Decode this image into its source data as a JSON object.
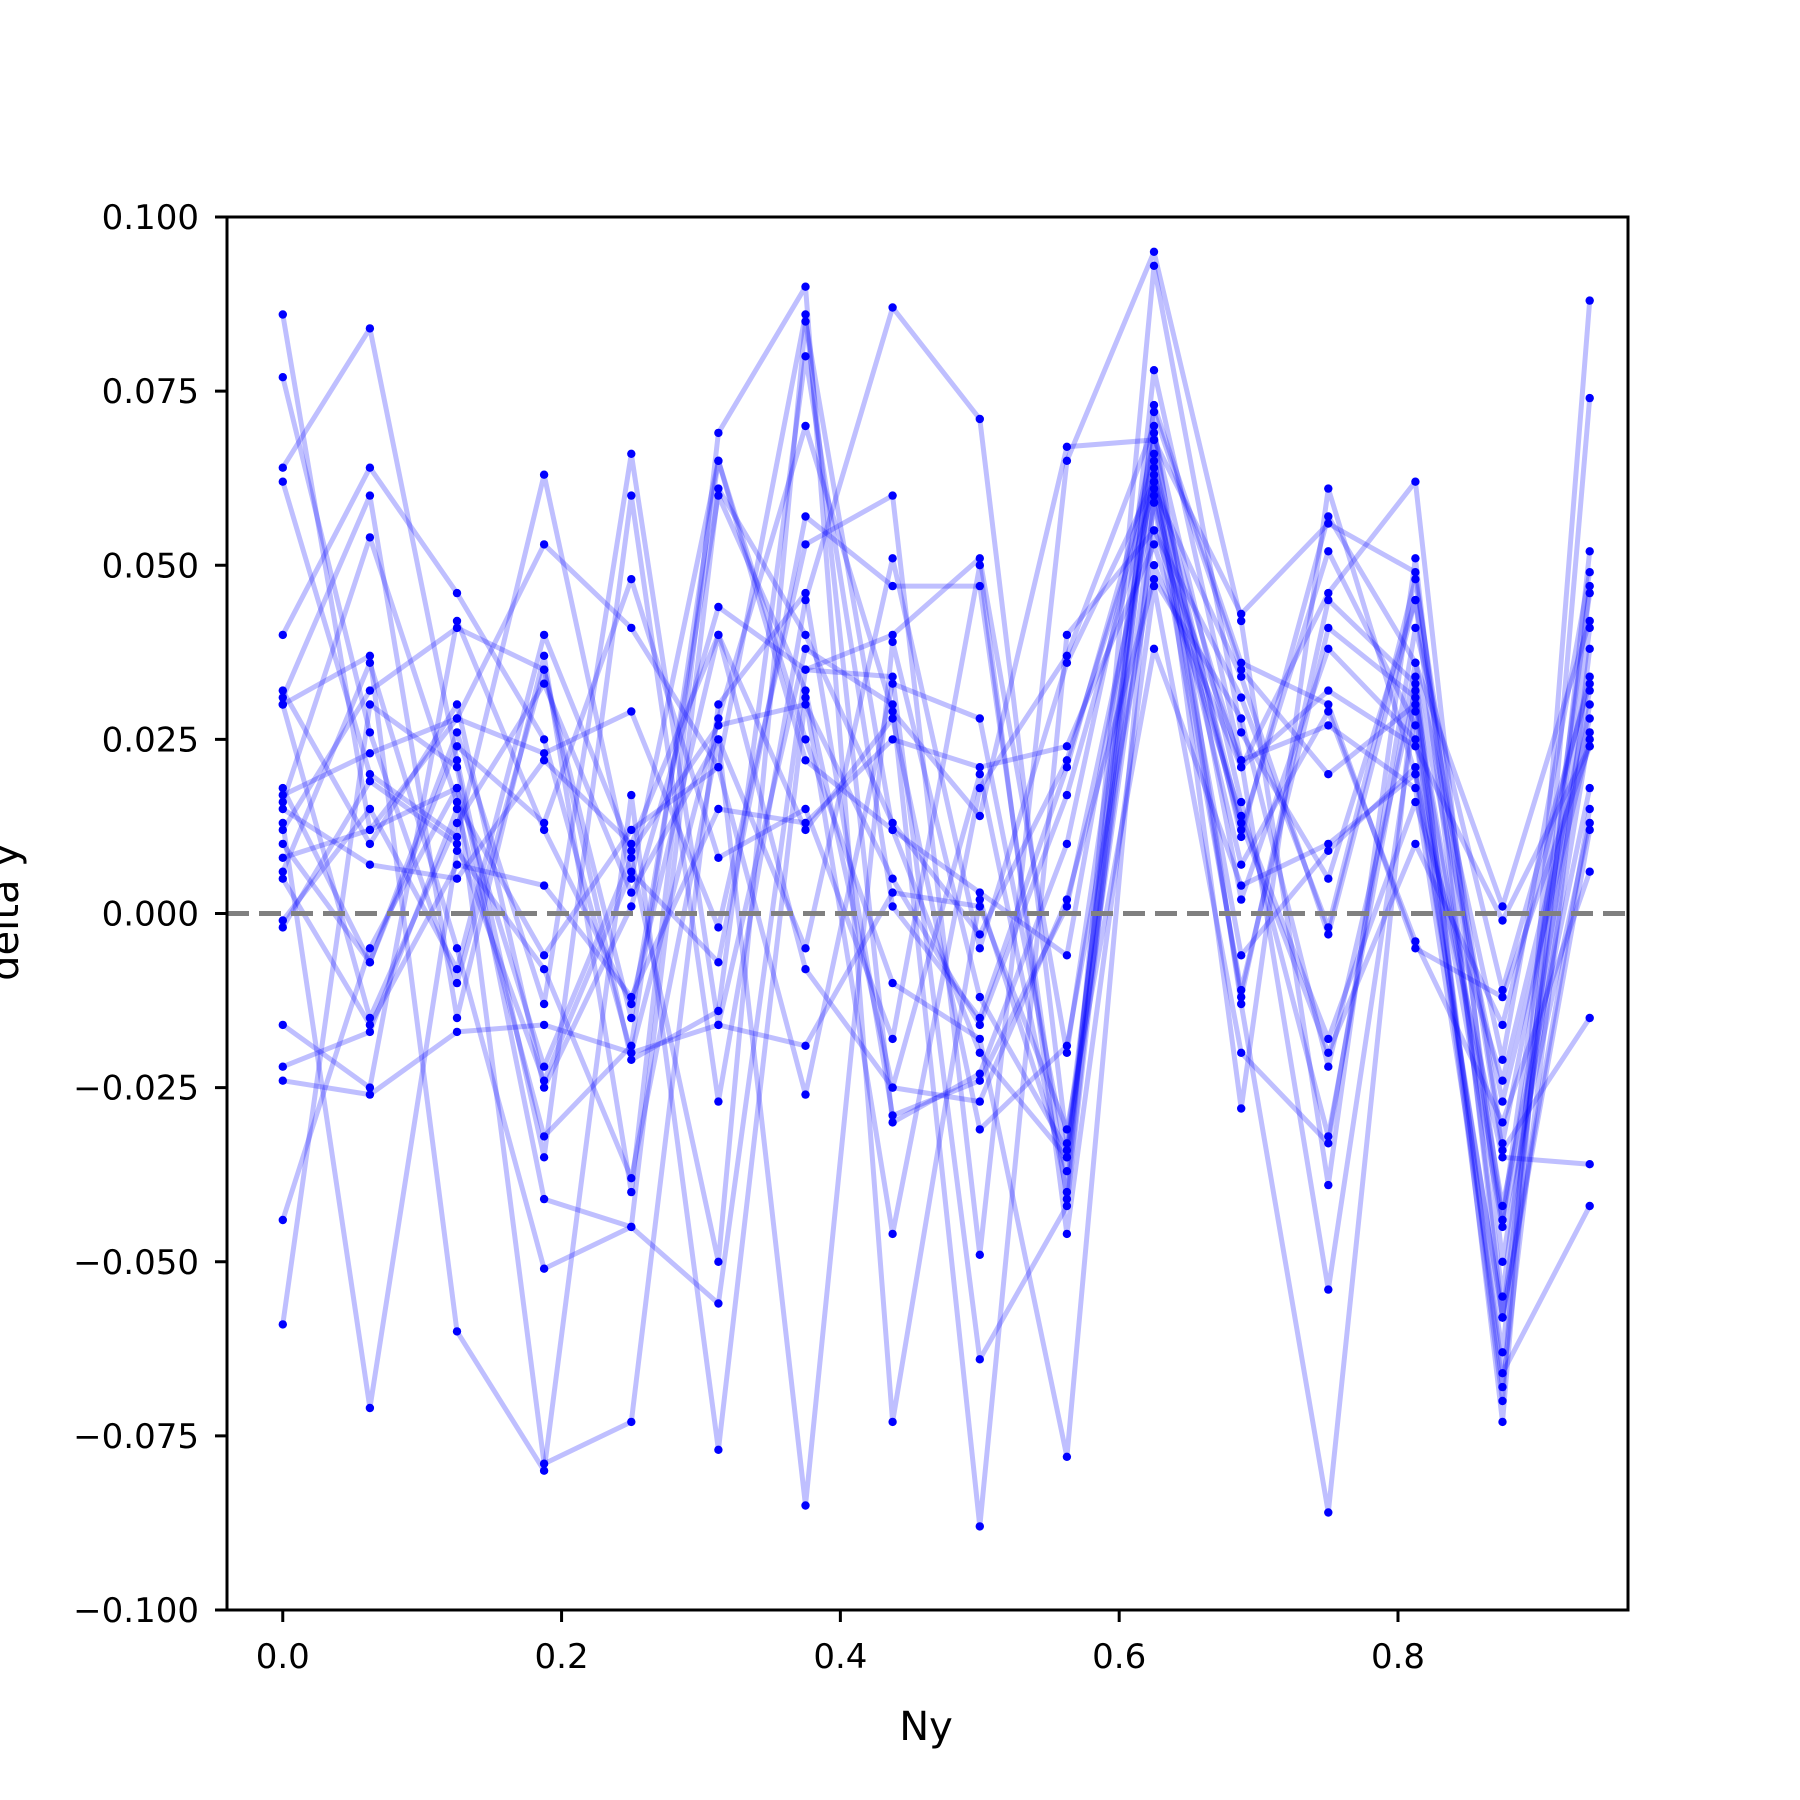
{
  "chart_data": {
    "type": "line",
    "title": "",
    "xlabel": "Ny",
    "ylabel": "delta y",
    "xlim": [
      -0.04,
      0.965
    ],
    "ylim": [
      -0.1,
      0.1
    ],
    "x": [
      0.0,
      0.0625,
      0.125,
      0.1875,
      0.25,
      0.3125,
      0.375,
      0.4375,
      0.5,
      0.5625,
      0.625,
      0.6875,
      0.75,
      0.8125,
      0.875,
      0.9375
    ],
    "x_ticks": [
      0.0,
      0.2,
      0.4,
      0.6,
      0.8
    ],
    "x_tick_labels": [
      "0.0",
      "0.2",
      "0.4",
      "0.6",
      "0.8"
    ],
    "y_ticks": [
      -0.1,
      -0.075,
      -0.05,
      -0.025,
      0.0,
      0.025,
      0.05,
      0.075,
      0.1
    ],
    "y_tick_labels": [
      "−0.100",
      "−0.075",
      "−0.050",
      "−0.025",
      "0.000",
      "0.025",
      "0.050",
      "0.075",
      "0.100"
    ],
    "reference_line": {
      "y": 0.0,
      "style": "dashed",
      "color": "#808080"
    },
    "grid": false,
    "legend": "none",
    "line_color": "#0000ff",
    "line_alpha": 0.25,
    "marker_color": "#0000ff",
    "series": [
      {
        "values": [
          0.086,
          0.012,
          0.018,
          -0.022,
          0.008,
          -0.05,
          0.085,
          0.012,
          -0.02,
          -0.035,
          0.072,
          0.035,
          0.02,
          0.03,
          -0.044,
          0.03
        ]
      },
      {
        "values": [
          0.077,
          0.026,
          -0.01,
          0.035,
          -0.015,
          0.06,
          0.032,
          -0.025,
          0.02,
          -0.04,
          0.093,
          0.026,
          0.005,
          0.045,
          -0.055,
          0.047
        ]
      },
      {
        "values": [
          0.064,
          0.084,
          0.022,
          -0.035,
          0.06,
          -0.027,
          0.045,
          0.087,
          0.071,
          -0.033,
          0.066,
          -0.028,
          0.061,
          0.02,
          -0.058,
          0.041
        ]
      },
      {
        "values": [
          0.062,
          0.02,
          0.011,
          0.063,
          0.005,
          0.065,
          0.025,
          -0.01,
          -0.018,
          -0.078,
          0.06,
          0.012,
          0.052,
          0.027,
          -0.07,
          0.088
        ]
      },
      {
        "values": [
          0.04,
          0.064,
          0.046,
          0.025,
          -0.02,
          0.028,
          0.07,
          0.029,
          0.014,
          0.067,
          0.068,
          0.043,
          0.056,
          0.049,
          -0.044,
          0.046
        ]
      },
      {
        "values": [
          0.031,
          0.06,
          -0.015,
          0.037,
          -0.04,
          0.069,
          0.09,
          -0.073,
          0.002,
          -0.037,
          0.078,
          0.022,
          0.027,
          0.018,
          -0.063,
          0.052
        ]
      },
      {
        "values": [
          0.032,
          0.01,
          0.03,
          -0.025,
          0.001,
          0.044,
          0.035,
          0.04,
          0.051,
          -0.02,
          0.064,
          -0.012,
          0.045,
          0.033,
          -0.027,
          0.025
        ]
      },
      {
        "values": [
          0.03,
          -0.015,
          0.013,
          0.033,
          0.003,
          0.025,
          -0.005,
          0.051,
          -0.005,
          0.036,
          0.062,
          0.013,
          -0.02,
          0.01,
          -0.016,
          0.034
        ]
      },
      {
        "values": [
          0.018,
          -0.007,
          0.026,
          -0.013,
          0.066,
          -0.016,
          0.038,
          0.03,
          -0.088,
          0.04,
          0.055,
          0.031,
          -0.002,
          0.048,
          -0.033,
          0.032
        ]
      },
      {
        "values": [
          0.017,
          0.023,
          0.028,
          0.053,
          0.041,
          0.021,
          0.086,
          -0.03,
          -0.023,
          0.01,
          0.068,
          0.002,
          0.038,
          0.025,
          -0.045,
          0.013
        ]
      },
      {
        "values": [
          0.016,
          0.054,
          0.016,
          -0.006,
          0.012,
          0.021,
          -0.026,
          0.033,
          0.028,
          -0.035,
          0.059,
          -0.011,
          0.041,
          0.031,
          -0.042,
          0.018
        ]
      },
      {
        "values": [
          0.015,
          0.007,
          0.005,
          0.022,
          0.01,
          0.04,
          0.012,
          0.028,
          -0.031,
          -0.019,
          0.05,
          0.021,
          0.032,
          0.024,
          -0.001,
          0.024
        ]
      },
      {
        "values": [
          0.012,
          0.032,
          0.041,
          0.035,
          -0.021,
          -0.014,
          0.08,
          0.001,
          -0.015,
          0.021,
          0.065,
          0.011,
          0.057,
          0.036,
          -0.021,
          0.049
        ]
      },
      {
        "values": [
          0.01,
          -0.007,
          0.024,
          0.013,
          0.048,
          0.008,
          0.015,
          -0.018,
          0.05,
          -0.046,
          0.047,
          -0.02,
          -0.033,
          0.041,
          -0.011,
          0.033
        ]
      },
      {
        "values": [
          0.006,
          0.036,
          -0.005,
          -0.051,
          -0.045,
          0.061,
          0.04,
          0.013,
          -0.003,
          0.022,
          0.062,
          -0.006,
          0.009,
          0.021,
          -0.058,
          0.015
        ]
      },
      {
        "values": [
          0.005,
          -0.016,
          0.007,
          0.004,
          -0.012,
          0.015,
          0.013,
          0.025,
          0.021,
          0.024,
          0.053,
          0.014,
          -0.018,
          0.016,
          -0.024,
          0.028
        ]
      },
      {
        "values": [
          -0.001,
          0.015,
          -0.008,
          0.04,
          0.009,
          0.027,
          0.03,
          0.005,
          -0.016,
          0.017,
          0.061,
          0.034,
          -0.003,
          0.045,
          -0.034,
          -0.015
        ]
      },
      {
        "values": [
          -0.002,
          0.019,
          0.01,
          -0.024,
          0.006,
          -0.007,
          0.057,
          0.047,
          0.047,
          -0.041,
          0.073,
          0.036,
          0.03,
          -0.005,
          -0.012,
          0.024
        ]
      },
      {
        "values": [
          -0.016,
          -0.025,
          0.042,
          0.012,
          -0.013,
          0.04,
          -0.008,
          -0.025,
          -0.027,
          0.002,
          0.048,
          0.028,
          -0.022,
          0.032,
          -0.068,
          0.038
        ]
      },
      {
        "values": [
          -0.022,
          -0.017,
          0.015,
          -0.032,
          -0.019,
          0.065,
          0.022,
          0.012,
          0.003,
          -0.006,
          0.063,
          0.021,
          0.046,
          0.062,
          -0.05,
          0.026
        ]
      },
      {
        "values": [
          -0.024,
          -0.026,
          -0.017,
          -0.016,
          -0.02,
          -0.016,
          -0.019,
          0.003,
          0.001,
          -0.031,
          0.038,
          0.004,
          0.01,
          0.02,
          -0.035,
          -0.036
        ]
      },
      {
        "values": [
          -0.044,
          -0.005,
          0.018,
          -0.079,
          -0.073,
          0.03,
          0.046,
          -0.029,
          -0.024,
          0.001,
          0.059,
          0.007,
          0.029,
          -0.004,
          -0.03,
          0.006
        ]
      },
      {
        "values": [
          -0.059,
          0.03,
          0.021,
          -0.041,
          -0.045,
          -0.056,
          0.035,
          0.034,
          -0.064,
          -0.042,
          0.069,
          0.016,
          -0.032,
          0.036,
          0.001,
          0.042
        ]
      },
      {
        "values": [
          0.013,
          -0.071,
          0.009,
          -0.008,
          -0.038,
          0.025,
          -0.085,
          0.039,
          -0.012,
          -0.034,
          0.055,
          0.022,
          -0.054,
          0.029,
          -0.066,
          -0.042
        ]
      },
      {
        "values": [
          0.03,
          0.037,
          -0.06,
          -0.08,
          0.017,
          -0.077,
          0.031,
          -0.046,
          0.018,
          0.037,
          0.07,
          -0.013,
          -0.086,
          0.034,
          -0.073,
          0.074
        ]
      },
      {
        "values": [
          0.008,
          0.012,
          0.028,
          0.023,
          0.029,
          -0.002,
          0.053,
          0.06,
          -0.049,
          0.065,
          0.095,
          0.042,
          -0.039,
          0.051,
          -0.058,
          0.012
        ]
      }
    ]
  }
}
